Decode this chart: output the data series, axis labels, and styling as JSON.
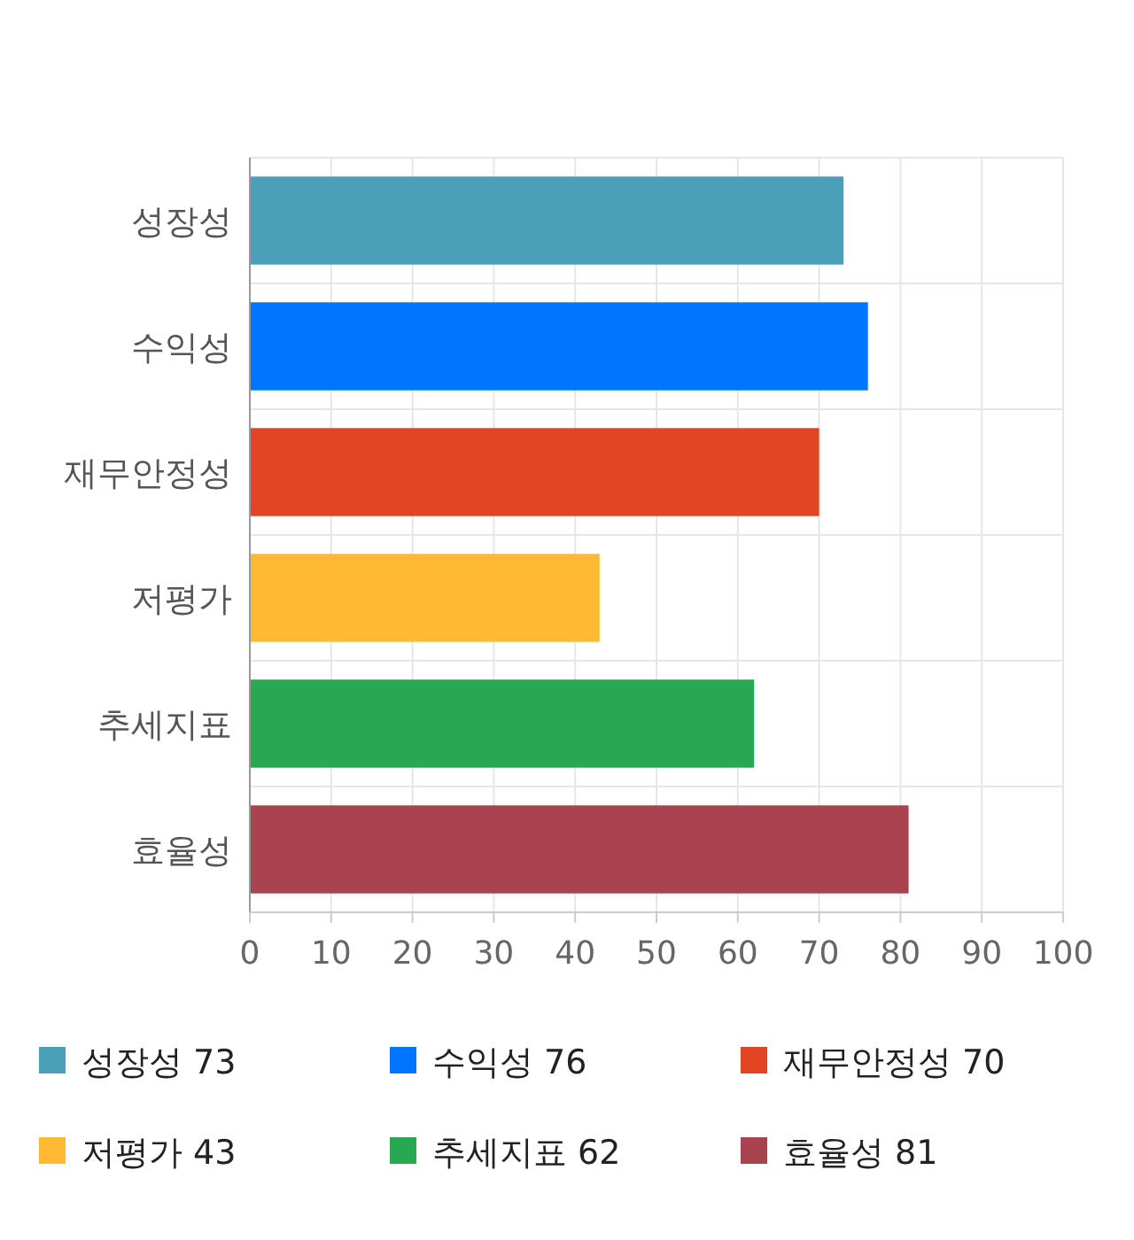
{
  "chart_data": {
    "type": "bar",
    "orientation": "horizontal",
    "stacked": true,
    "categories": [
      "성장성",
      "수익성",
      "재무안정성",
      "저평가",
      "추세지표",
      "효율성"
    ],
    "series": [
      {
        "name": "성장성 73",
        "color": "#4aa0b9",
        "values": [
          73,
          null,
          null,
          null,
          null,
          null
        ]
      },
      {
        "name": "수익성 76",
        "color": "#0075ff",
        "values": [
          null,
          76,
          null,
          null,
          null,
          null
        ]
      },
      {
        "name": "재무안정성 70",
        "color": "#e24524",
        "values": [
          null,
          null,
          70,
          null,
          null,
          null
        ]
      },
      {
        "name": "저평가 43",
        "color": "#ffb933",
        "values": [
          null,
          null,
          null,
          43,
          null,
          null
        ]
      },
      {
        "name": "추세지표 62",
        "color": "#29a854",
        "values": [
          null,
          null,
          null,
          null,
          62,
          null
        ]
      },
      {
        "name": "효율성 81",
        "color": "#a8434f",
        "values": [
          null,
          null,
          null,
          null,
          null,
          81
        ]
      }
    ],
    "xlim": [
      0,
      100
    ],
    "xticks": [
      0,
      10,
      20,
      30,
      40,
      50,
      60,
      70,
      80,
      90,
      100
    ],
    "grid": true,
    "legend": "bottom"
  }
}
